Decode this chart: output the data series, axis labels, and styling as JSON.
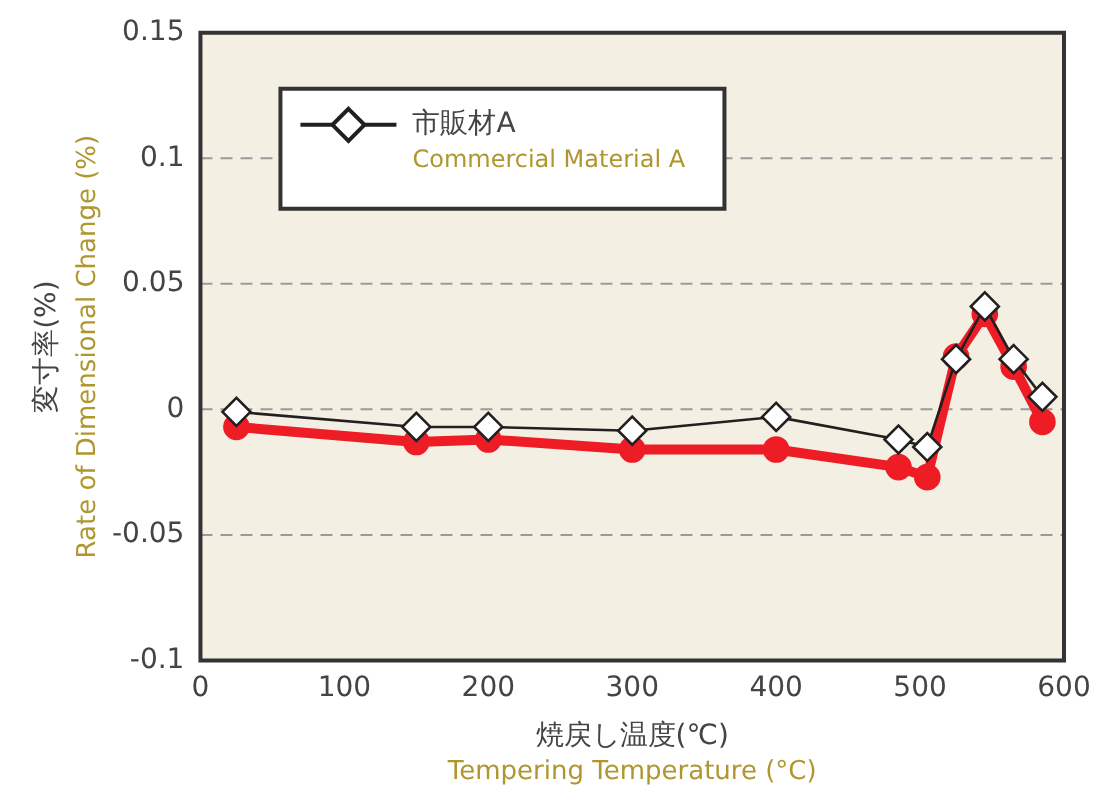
{
  "chart_data": {
    "type": "line",
    "xlabel": "焼戻し温度(℃)\nTempering Temperature (°C)",
    "ylabel": "変寸率(%)\nRate of Dimensional Change (%)",
    "x": [
      25,
      150,
      200,
      300,
      400,
      485,
      505,
      525,
      545,
      565,
      585
    ],
    "series": [
      {
        "color": "#ee1c25",
        "marker": "circle",
        "values": [
          -0.007,
          -0.013,
          -0.012,
          -0.016,
          -0.016,
          -0.023,
          -0.027,
          0.021,
          0.038,
          0.017,
          -0.005
        ]
      },
      {
        "name": "市販材A\nCommercial Material A",
        "color": "#231f20",
        "marker": "diamond",
        "values": [
          -0.001,
          -0.007,
          -0.007,
          -0.0085,
          -0.003,
          -0.012,
          -0.015,
          0.02,
          0.041,
          0.02,
          0.005
        ]
      }
    ],
    "xlim": [
      0,
      600
    ],
    "xticks": [
      0,
      100,
      200,
      300,
      400,
      500,
      600
    ],
    "ylim": [
      -0.1,
      0.15
    ],
    "yticks": [
      -0.1,
      -0.05,
      0,
      0.05,
      0.1,
      0.15
    ],
    "grid": "y",
    "legend": "top left"
  }
}
